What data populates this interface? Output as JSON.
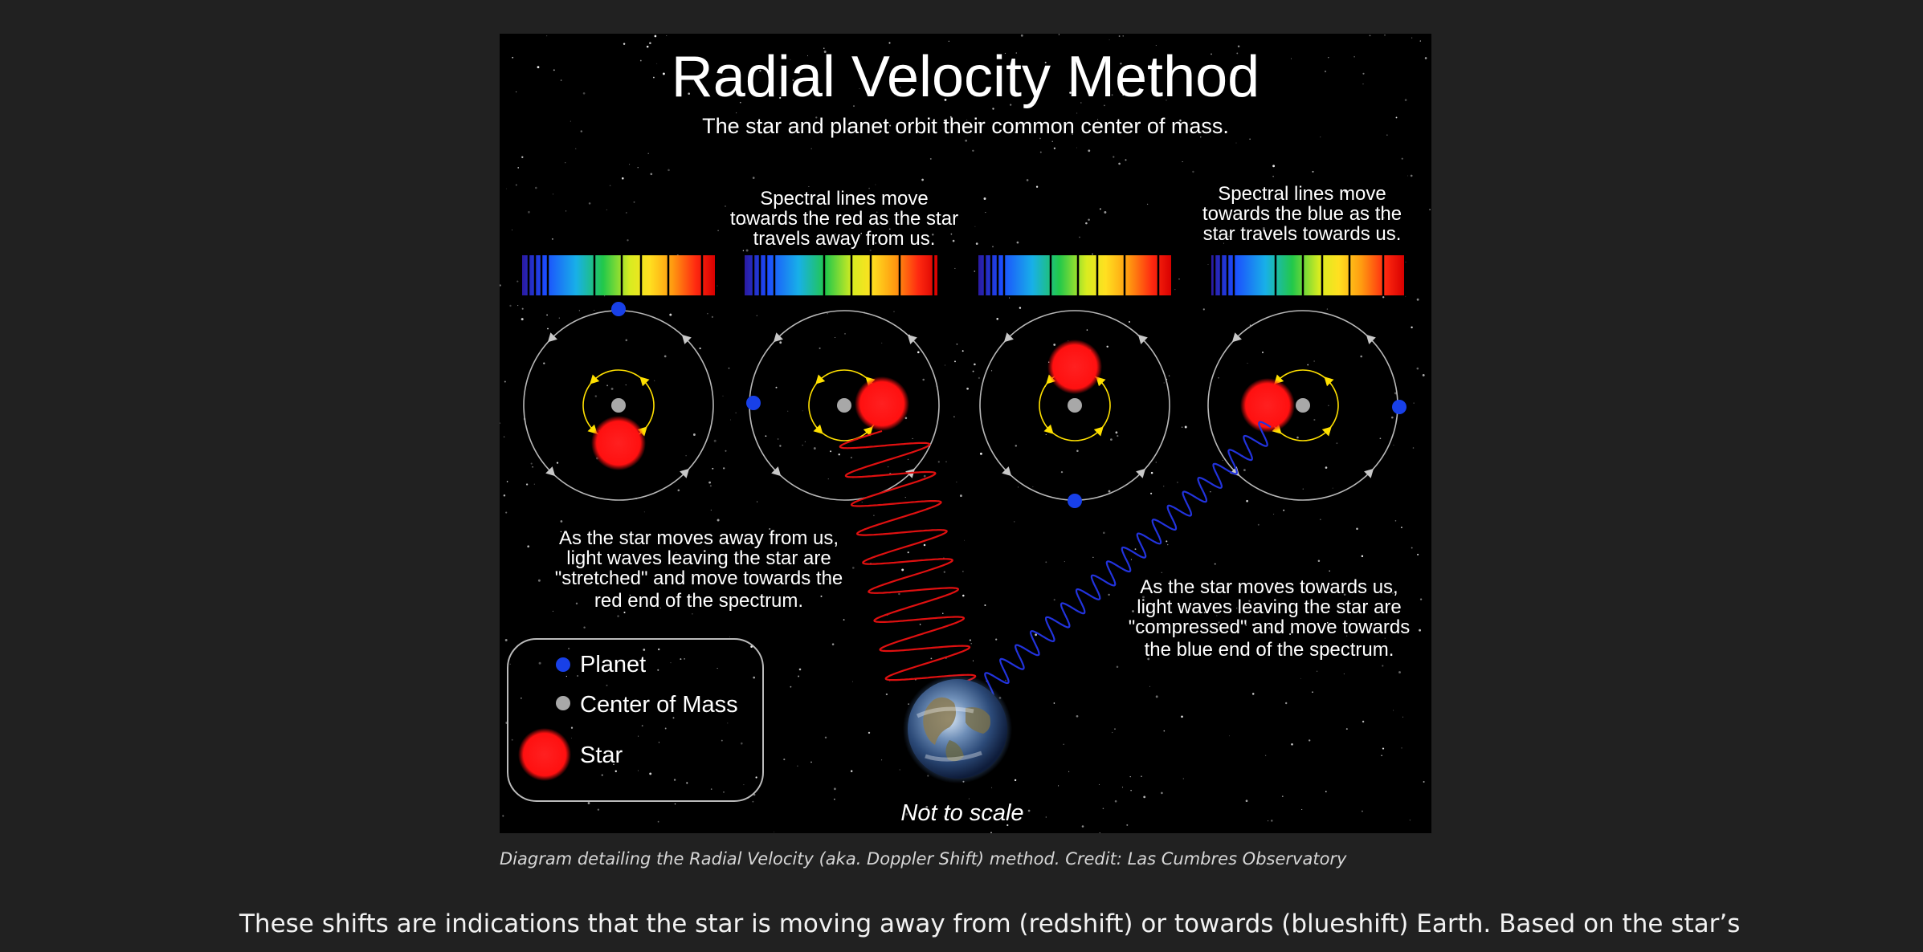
{
  "figure": {
    "title": "Radial Velocity Method",
    "subtitle": "The star and planet orbit their common center of mass.",
    "spectral_red_note": [
      "Spectral lines move",
      "towards the red as the star",
      "travels away from us."
    ],
    "spectral_blue_note": [
      "Spectral lines move",
      "towards the blue as the",
      "star travels towards us."
    ],
    "away_note": [
      "As the star moves away from us,",
      "light waves leaving the star are",
      "\"stretched\" and move towards the",
      "red end of the spectrum."
    ],
    "towards_note": [
      "As the star moves towards us,",
      "light waves leaving the star are",
      "\"compressed\" and move towards",
      "the blue end of the spectrum."
    ],
    "legend": {
      "planet": "Planet",
      "center_of_mass": "Center of Mass",
      "star": "Star"
    },
    "scale_note": "Not to scale",
    "colors": {
      "planet": "#1840e8",
      "star": "#ff1a1a",
      "center_of_mass": "#a8a8a8",
      "star_orbit": "#ffe000",
      "red_wave": "#e01010",
      "blue_wave": "#2233dd"
    }
  },
  "caption": "Diagram detailing the Radial Velocity (aka. Doppler Shift) method. Credit: Las Cumbres Observatory",
  "body_text": "These shifts are indications that the star is moving away from (redshift) or towards (blueshift) Earth. Based on the star’s"
}
